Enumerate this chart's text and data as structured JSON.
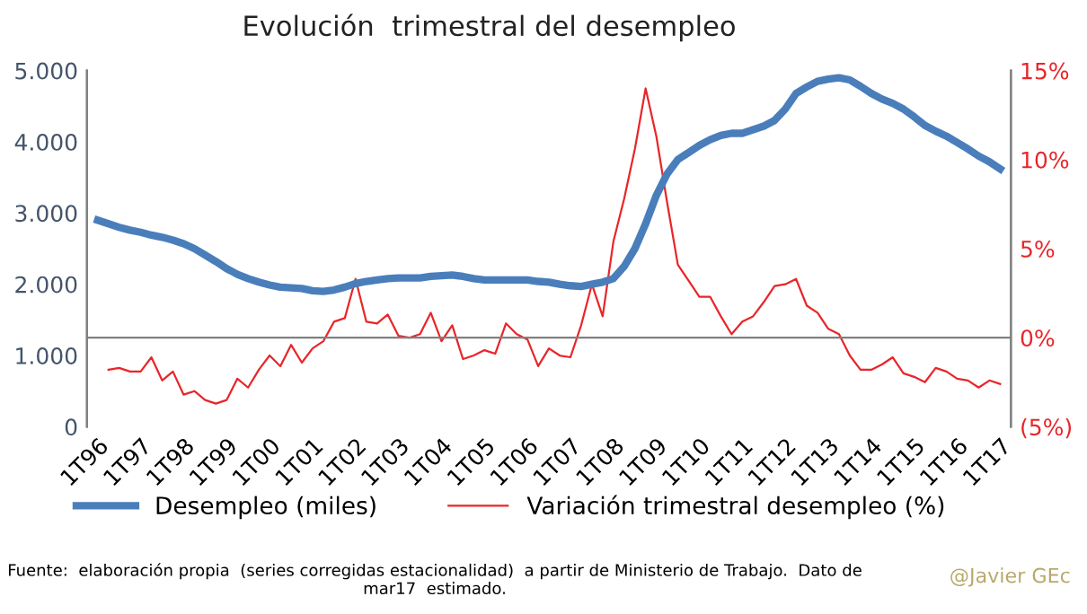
{
  "chart_data": {
    "type": "line",
    "title": "Evolución  trimestral del desempleo",
    "categories": [
      "1T96",
      null,
      null,
      null,
      "1T97",
      null,
      null,
      null,
      "1T98",
      null,
      null,
      null,
      "1T99",
      null,
      null,
      null,
      "1T00",
      null,
      null,
      null,
      "1T01",
      null,
      null,
      null,
      "1T02",
      null,
      null,
      null,
      "1T03",
      null,
      null,
      null,
      "1T04",
      null,
      null,
      null,
      "1T05",
      null,
      null,
      null,
      "1T06",
      null,
      null,
      null,
      "1T07",
      null,
      null,
      null,
      "1T08",
      null,
      null,
      null,
      "1T09",
      null,
      null,
      null,
      "1T10",
      null,
      null,
      null,
      "1T11",
      null,
      null,
      null,
      "1T12",
      null,
      null,
      null,
      "1T13",
      null,
      null,
      null,
      "1T14",
      null,
      null,
      null,
      "1T15",
      null,
      null,
      null,
      "1T16",
      null,
      null,
      null,
      "1T17"
    ],
    "series": [
      {
        "name": "Desempleo (miles)",
        "color": "#4a7ebb",
        "values": [
          2900,
          2850,
          2800,
          2760,
          2730,
          2690,
          2660,
          2620,
          2570,
          2500,
          2410,
          2320,
          2220,
          2140,
          2080,
          2030,
          1990,
          1960,
          1950,
          1940,
          1910,
          1900,
          1920,
          1960,
          2010,
          2040,
          2060,
          2080,
          2090,
          2090,
          2090,
          2110,
          2120,
          2130,
          2110,
          2080,
          2060,
          2060,
          2060,
          2060,
          2060,
          2040,
          2030,
          2000,
          1980,
          1970,
          2000,
          2030,
          2080,
          2250,
          2500,
          2850,
          3250,
          3550,
          3750,
          3850,
          3950,
          4030,
          4090,
          4120,
          4120,
          4170,
          4220,
          4300,
          4460,
          4680,
          4770,
          4850,
          4880,
          4900,
          4870,
          4780,
          4680,
          4600,
          4540,
          4460,
          4350,
          4230,
          4150,
          4080,
          3990,
          3900,
          3800,
          3720,
          3620
        ]
      },
      {
        "name": "Variación trimestral desempleo (%)",
        "color": "#e8262a",
        "axis": "y2",
        "values": [
          null,
          -1.8,
          -1.7,
          -1.9,
          -1.9,
          -1.1,
          -2.4,
          -1.9,
          -3.2,
          -3.0,
          -3.5,
          -3.7,
          -3.5,
          -2.3,
          -2.8,
          -1.8,
          -1.0,
          -1.6,
          -0.4,
          -1.4,
          -0.6,
          -0.2,
          0.9,
          1.1,
          3.3,
          0.9,
          0.8,
          1.3,
          0.1,
          0.0,
          0.2,
          1.4,
          -0.2,
          0.7,
          -1.2,
          -1.0,
          -0.7,
          -0.9,
          0.8,
          0.2,
          -0.1,
          -1.6,
          -0.6,
          -1.0,
          -1.1,
          0.7,
          3.0,
          1.2,
          5.4,
          7.8,
          10.6,
          14.0,
          11.3,
          7.6,
          4.1,
          3.2,
          2.3,
          2.3,
          1.2,
          0.2,
          0.9,
          1.2,
          2.0,
          2.9,
          3.0,
          3.3,
          1.8,
          1.4,
          0.5,
          0.2,
          -1.0,
          -1.8,
          -1.8,
          -1.5,
          -1.1,
          -2.0,
          -2.2,
          -2.5,
          -1.7,
          -1.9,
          -2.3,
          -2.4,
          -2.8,
          -2.4,
          -2.6
        ]
      }
    ],
    "ylim": [
      0,
      5000
    ],
    "yticks": [
      0,
      {
        "value": 1000,
        "label": "1.000"
      },
      {
        "value": 2000,
        "label": "2.000"
      },
      {
        "value": 3000,
        "label": "3.000"
      },
      {
        "value": 4000,
        "label": "4.000"
      },
      {
        "value": 5000,
        "label": "5.000"
      }
    ],
    "y2lim": [
      -5,
      15
    ],
    "y2ticks": [
      {
        "value": -5,
        "label": "(5%)"
      },
      {
        "value": 0,
        "label": "0%"
      },
      {
        "value": 5,
        "label": "5%"
      },
      {
        "value": 10,
        "label": "10%"
      },
      {
        "value": 15,
        "label": "15%"
      }
    ],
    "ref_lines": [
      {
        "axis": "y2",
        "value": 0,
        "color": "#808080"
      }
    ],
    "legend": "bottom",
    "grid": false,
    "marker": "none",
    "line_style": "solid",
    "annotations": [
      "Fuente:  elaboración propia  (series corregidas estacionalidad)  a partir de Ministerio de Trabajo.  Dato de mar17  estimado.",
      "@Javier GEc"
    ]
  }
}
